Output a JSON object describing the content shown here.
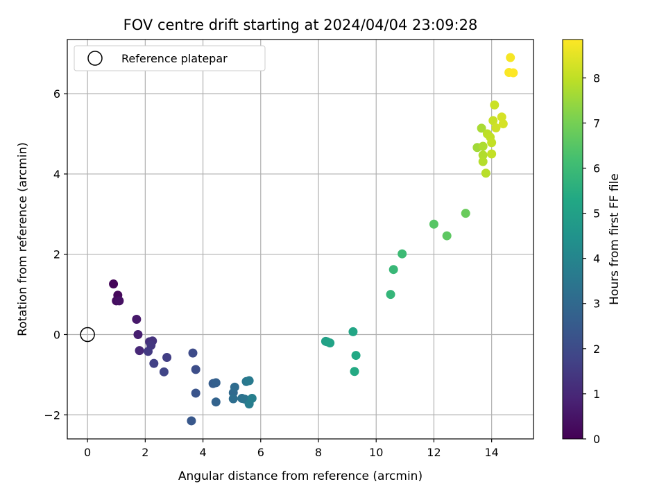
{
  "chart_data": {
    "type": "scatter",
    "title": "FOV centre drift starting at 2024/04/04 23:09:28",
    "xlabel": "Angular distance from reference (arcmin)",
    "ylabel": "Rotation from reference (arcmin)",
    "xlim": [
      -0.7,
      15.45
    ],
    "ylim": [
      -2.6,
      7.35
    ],
    "xticks": [
      0,
      2,
      4,
      6,
      8,
      10,
      12,
      14
    ],
    "yticks": [
      -2,
      0,
      2,
      4,
      6
    ],
    "grid": true,
    "legend": {
      "location": "upper-left",
      "entries": [
        "Reference platepar"
      ]
    },
    "reference_point": {
      "x": 0,
      "y": 0
    },
    "colorbar": {
      "label": "Hours from first FF file",
      "colormap": "viridis",
      "range": [
        0,
        8.85
      ],
      "ticks": [
        0,
        1,
        2,
        3,
        4,
        5,
        6,
        7,
        8
      ]
    },
    "points": [
      {
        "x": 0.9,
        "y": 1.26,
        "c": 0.1
      },
      {
        "x": 1.05,
        "y": 0.98,
        "c": 0.2
      },
      {
        "x": 1.0,
        "y": 0.84,
        "c": 0.3
      },
      {
        "x": 1.1,
        "y": 0.84,
        "c": 0.4
      },
      {
        "x": 1.7,
        "y": 0.38,
        "c": 0.6
      },
      {
        "x": 1.75,
        "y": 0.0,
        "c": 0.75
      },
      {
        "x": 1.8,
        "y": -0.4,
        "c": 1.0
      },
      {
        "x": 2.15,
        "y": -0.18,
        "c": 1.2
      },
      {
        "x": 2.25,
        "y": -0.16,
        "c": 1.3
      },
      {
        "x": 2.2,
        "y": -0.27,
        "c": 1.4
      },
      {
        "x": 2.1,
        "y": -0.42,
        "c": 1.5
      },
      {
        "x": 2.75,
        "y": -0.57,
        "c": 1.6
      },
      {
        "x": 2.3,
        "y": -0.72,
        "c": 1.7
      },
      {
        "x": 2.65,
        "y": -0.93,
        "c": 1.8
      },
      {
        "x": 3.65,
        "y": -0.46,
        "c": 2.0
      },
      {
        "x": 3.75,
        "y": -0.87,
        "c": 2.1
      },
      {
        "x": 3.75,
        "y": -1.46,
        "c": 2.3
      },
      {
        "x": 3.6,
        "y": -2.15,
        "c": 2.4
      },
      {
        "x": 4.35,
        "y": -1.22,
        "c": 2.6
      },
      {
        "x": 4.45,
        "y": -1.2,
        "c": 2.7
      },
      {
        "x": 4.45,
        "y": -1.68,
        "c": 2.8
      },
      {
        "x": 5.05,
        "y": -1.45,
        "c": 3.0
      },
      {
        "x": 5.1,
        "y": -1.31,
        "c": 3.1
      },
      {
        "x": 5.05,
        "y": -1.6,
        "c": 3.2
      },
      {
        "x": 5.35,
        "y": -1.59,
        "c": 3.3
      },
      {
        "x": 5.45,
        "y": -1.61,
        "c": 3.4
      },
      {
        "x": 5.5,
        "y": -1.17,
        "c": 3.5
      },
      {
        "x": 5.6,
        "y": -1.15,
        "c": 3.6
      },
      {
        "x": 5.6,
        "y": -1.73,
        "c": 3.7
      },
      {
        "x": 5.7,
        "y": -1.59,
        "c": 3.8
      },
      {
        "x": 8.25,
        "y": -0.17,
        "c": 5.0
      },
      {
        "x": 8.3,
        "y": -0.18,
        "c": 5.05
      },
      {
        "x": 8.4,
        "y": -0.21,
        "c": 5.1
      },
      {
        "x": 9.2,
        "y": 0.07,
        "c": 5.2
      },
      {
        "x": 9.3,
        "y": -0.52,
        "c": 5.3
      },
      {
        "x": 9.25,
        "y": -0.92,
        "c": 5.35
      },
      {
        "x": 10.5,
        "y": 1.0,
        "c": 5.8
      },
      {
        "x": 10.6,
        "y": 1.62,
        "c": 5.9
      },
      {
        "x": 10.9,
        "y": 2.01,
        "c": 6.0
      },
      {
        "x": 12.0,
        "y": 2.75,
        "c": 6.5
      },
      {
        "x": 12.45,
        "y": 2.46,
        "c": 6.6
      },
      {
        "x": 13.1,
        "y": 3.02,
        "c": 6.8
      },
      {
        "x": 13.5,
        "y": 4.66,
        "c": 7.6
      },
      {
        "x": 13.65,
        "y": 5.14,
        "c": 7.7
      },
      {
        "x": 13.7,
        "y": 4.69,
        "c": 7.75
      },
      {
        "x": 13.7,
        "y": 4.47,
        "c": 7.8
      },
      {
        "x": 13.7,
        "y": 4.31,
        "c": 7.85
      },
      {
        "x": 13.8,
        "y": 4.02,
        "c": 7.9
      },
      {
        "x": 13.85,
        "y": 5.0,
        "c": 7.95
      },
      {
        "x": 13.95,
        "y": 4.92,
        "c": 8.0
      },
      {
        "x": 14.0,
        "y": 4.78,
        "c": 8.05
      },
      {
        "x": 14.0,
        "y": 4.5,
        "c": 8.05
      },
      {
        "x": 14.05,
        "y": 5.33,
        "c": 8.1
      },
      {
        "x": 14.1,
        "y": 5.72,
        "c": 8.15
      },
      {
        "x": 14.15,
        "y": 5.15,
        "c": 8.2
      },
      {
        "x": 14.35,
        "y": 5.42,
        "c": 8.3
      },
      {
        "x": 14.4,
        "y": 5.25,
        "c": 8.3
      },
      {
        "x": 14.65,
        "y": 6.9,
        "c": 8.75
      },
      {
        "x": 14.6,
        "y": 6.53,
        "c": 8.8
      },
      {
        "x": 14.75,
        "y": 6.52,
        "c": 8.85
      }
    ]
  }
}
